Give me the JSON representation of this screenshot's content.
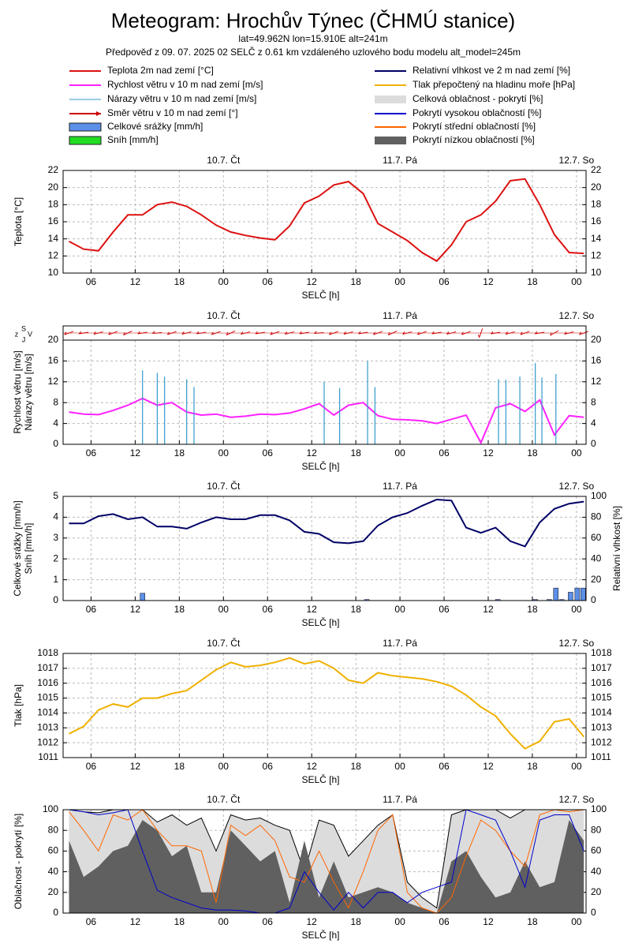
{
  "header": {
    "title": "Meteogram: Hrochův Týnec (ČHMÚ stanice)",
    "subtitle": "lat=49.962N lon=15.910E alt=241m",
    "forecast": "Předpověď z 09. 07. 2025 02 SELČ z 0.61 km vzdáleného uzlového bodu modelu alt_model=245m"
  },
  "chart_data": [
    {
      "type": "line",
      "ylabel": [
        "Teplota [°C]"
      ],
      "xlabel": "SELČ [h]",
      "x": [
        3,
        5,
        7,
        9,
        11,
        13,
        15,
        17,
        19,
        21,
        23,
        25,
        27,
        29,
        31,
        33,
        35,
        37,
        39,
        41,
        43,
        45,
        47,
        49,
        51,
        53,
        55,
        57,
        59,
        61,
        63,
        65,
        67,
        69,
        71,
        73
      ],
      "xlim": [
        2.2,
        73.3
      ],
      "xticks": [
        {
          "value": 6,
          "label": "06"
        },
        {
          "value": 12,
          "label": "12"
        },
        {
          "value": 18,
          "label": "18"
        },
        {
          "value": 24,
          "label": "00"
        },
        {
          "value": 30,
          "label": "06"
        },
        {
          "value": 36,
          "label": "12"
        },
        {
          "value": 42,
          "label": "18"
        },
        {
          "value": 48,
          "label": "00"
        },
        {
          "value": 54,
          "label": "06"
        },
        {
          "value": 60,
          "label": "12"
        },
        {
          "value": 66,
          "label": "18"
        },
        {
          "value": 72,
          "label": "00"
        }
      ],
      "days": [
        {
          "value": 24,
          "label": "10.7. Čt"
        },
        {
          "value": 48,
          "label": "11.7. Pá"
        },
        {
          "value": 72,
          "label": "12.7. So"
        }
      ],
      "ylim": [
        10,
        22
      ],
      "yticks": [
        10,
        12,
        14,
        16,
        18,
        20,
        22
      ],
      "yticks_mirror": true,
      "grid": true,
      "series": [
        {
          "name": "Teplota 2m nad zemí [°C]",
          "type": "line",
          "color": "#dd1111",
          "values": [
            13.7,
            12.8,
            12.6,
            14.8,
            16.8,
            16.8,
            18.0,
            18.3,
            17.8,
            16.8,
            15.6,
            14.8,
            14.4,
            14.1,
            13.9,
            15.5,
            18.2,
            19.0,
            20.3,
            20.7,
            19.3,
            15.8,
            14.8,
            13.8,
            12.4,
            11.4,
            13.3,
            16.0,
            16.8,
            18.4,
            20.8,
            21.0,
            18.0,
            14.5,
            12.4,
            12.3
          ]
        }
      ]
    },
    {
      "type": "line",
      "ylabel": [
        "Rychlost větru [m/s]",
        "Nárazy větru [m/s]"
      ],
      "xlabel": "SELČ [h]",
      "compass": [
        "z",
        "S",
        "J",
        "V"
      ],
      "x": [
        3,
        5,
        7,
        9,
        11,
        13,
        15,
        17,
        19,
        21,
        23,
        25,
        27,
        29,
        31,
        33,
        35,
        37,
        39,
        41,
        43,
        45,
        47,
        49,
        51,
        53,
        55,
        57,
        59,
        61,
        63,
        65,
        67,
        69,
        71,
        73
      ],
      "xlim": [
        2.2,
        73.3
      ],
      "xticks": [
        {
          "value": 6,
          "label": "06"
        },
        {
          "value": 12,
          "label": "12"
        },
        {
          "value": 18,
          "label": "18"
        },
        {
          "value": 24,
          "label": "00"
        },
        {
          "value": 30,
          "label": "06"
        },
        {
          "value": 36,
          "label": "12"
        },
        {
          "value": 42,
          "label": "18"
        },
        {
          "value": 48,
          "label": "00"
        },
        {
          "value": 54,
          "label": "06"
        },
        {
          "value": 60,
          "label": "12"
        },
        {
          "value": 66,
          "label": "18"
        },
        {
          "value": 72,
          "label": "00"
        }
      ],
      "days": [
        {
          "value": 24,
          "label": "10.7. Čt"
        },
        {
          "value": 48,
          "label": "11.7. Pá"
        },
        {
          "value": 72,
          "label": "12.7. So"
        }
      ],
      "ylim": [
        0,
        20
      ],
      "yticks": [
        0,
        4,
        8,
        12,
        16,
        20
      ],
      "yticks_mirror": true,
      "grid": true,
      "series": [
        {
          "name": "Rychlost větru v 10 m nad zemí [m/s]",
          "type": "line",
          "color": "#ff22ff",
          "values": [
            6.2,
            5.8,
            5.7,
            6.5,
            7.5,
            8.8,
            7.5,
            8.0,
            6.2,
            5.6,
            5.8,
            5.2,
            5.4,
            5.8,
            5.7,
            6.0,
            6.8,
            7.8,
            5.6,
            7.5,
            8.0,
            5.5,
            4.8,
            4.7,
            4.5,
            4.0,
            4.8,
            5.6,
            0.3,
            7.0,
            7.8,
            6.3,
            8.5,
            1.8,
            5.5,
            5.2
          ]
        },
        {
          "name": "Nárazy větru v 10 m nad zemí [m/s]",
          "type": "stem",
          "color": "#3399cc",
          "x": [
            13,
            15,
            16,
            19,
            20,
            37.7,
            39.8,
            43.6,
            44.6,
            61.4,
            62.4,
            64.3,
            66.4,
            67.3,
            69.2
          ],
          "values": [
            14.2,
            13.7,
            13,
            12.5,
            11,
            12,
            10.8,
            16,
            11,
            12.5,
            12.4,
            13,
            15.6,
            12.8,
            13.5
          ]
        },
        {
          "name": "Směr větru v 10 m nad zemí [°]",
          "type": "arrows",
          "color": "#cc0000",
          "values": [
            250,
            260,
            255,
            250,
            245,
            260,
            265,
            250,
            255,
            260,
            250,
            245,
            255,
            260,
            250,
            255,
            260,
            265,
            250,
            255,
            260,
            250,
            245,
            255,
            250,
            260,
            255,
            250,
            200,
            260,
            255,
            250,
            260,
            240,
            255,
            250
          ]
        }
      ]
    },
    {
      "type": "bar",
      "ylabel": [
        "Celkové srážky [mm/h]",
        "Sníh [mm/h]"
      ],
      "y2label": "Relativní vlhkost [%]",
      "xlabel": "SELČ [h]",
      "x": [
        3,
        5,
        7,
        9,
        11,
        13,
        15,
        17,
        19,
        21,
        23,
        25,
        27,
        29,
        31,
        33,
        35,
        37,
        39,
        41,
        43,
        45,
        47,
        49,
        51,
        53,
        55,
        57,
        59,
        61,
        63,
        65,
        67,
        69,
        71,
        73
      ],
      "xlim": [
        2.2,
        73.3
      ],
      "xticks": [
        {
          "value": 6,
          "label": "06"
        },
        {
          "value": 12,
          "label": "12"
        },
        {
          "value": 18,
          "label": "18"
        },
        {
          "value": 24,
          "label": "00"
        },
        {
          "value": 30,
          "label": "06"
        },
        {
          "value": 36,
          "label": "12"
        },
        {
          "value": 42,
          "label": "18"
        },
        {
          "value": 48,
          "label": "00"
        },
        {
          "value": 54,
          "label": "06"
        },
        {
          "value": 60,
          "label": "12"
        },
        {
          "value": 66,
          "label": "18"
        },
        {
          "value": 72,
          "label": "00"
        }
      ],
      "days": [
        {
          "value": 24,
          "label": "10.7. Čt"
        },
        {
          "value": 48,
          "label": "11.7. Pá"
        },
        {
          "value": 72,
          "label": "12.7. So"
        }
      ],
      "ylim": [
        0,
        5
      ],
      "yticks": [
        0,
        1,
        2,
        3,
        4,
        5
      ],
      "y2lim": [
        0,
        100
      ],
      "y2ticks": [
        0,
        20,
        40,
        60,
        80,
        100
      ],
      "grid": true,
      "series": [
        {
          "name": "Celkové srážky [mm/h]",
          "type": "bar",
          "color": "#5b8fe8",
          "x": [
            13,
            43.5,
            61.3,
            66.4,
            68.3,
            69.2,
            70,
            71.2,
            72.1,
            72.9
          ],
          "values": [
            0.35,
            0.05,
            0.05,
            0.05,
            0.05,
            0.6,
            0.05,
            0.4,
            0.6,
            0.6
          ]
        },
        {
          "name": "Sníh [mm/h]",
          "type": "bar",
          "color": "#22dd22",
          "x": [],
          "values": []
        },
        {
          "name": "Relativní vlhkost ve 2 m nad zemí [%]",
          "type": "line",
          "axis": "y2",
          "color": "#000066",
          "values": [
            74,
            74,
            81,
            83,
            78,
            80,
            71,
            71,
            69,
            75,
            80,
            78,
            78,
            82,
            82,
            77,
            66,
            64,
            56,
            55,
            57,
            72,
            80,
            84,
            91,
            97,
            96,
            70,
            65,
            70,
            57,
            52,
            75,
            88,
            93,
            95
          ]
        }
      ]
    },
    {
      "type": "line",
      "ylabel": [
        "Tlak [hPa]"
      ],
      "xlabel": "SELČ [h]",
      "x": [
        3,
        5,
        7,
        9,
        11,
        13,
        15,
        17,
        19,
        21,
        23,
        25,
        27,
        29,
        31,
        33,
        35,
        37,
        39,
        41,
        43,
        45,
        47,
        49,
        51,
        53,
        55,
        57,
        59,
        61,
        63,
        65,
        67,
        69,
        71,
        73
      ],
      "xlim": [
        2.2,
        73.3
      ],
      "xticks": [
        {
          "value": 6,
          "label": "06"
        },
        {
          "value": 12,
          "label": "12"
        },
        {
          "value": 18,
          "label": "18"
        },
        {
          "value": 24,
          "label": "00"
        },
        {
          "value": 30,
          "label": "06"
        },
        {
          "value": 36,
          "label": "12"
        },
        {
          "value": 42,
          "label": "18"
        },
        {
          "value": 48,
          "label": "00"
        },
        {
          "value": 54,
          "label": "06"
        },
        {
          "value": 60,
          "label": "12"
        },
        {
          "value": 66,
          "label": "18"
        },
        {
          "value": 72,
          "label": "00"
        }
      ],
      "days": [
        {
          "value": 24,
          "label": "10.7. Čt"
        },
        {
          "value": 48,
          "label": "11.7. Pá"
        },
        {
          "value": 72,
          "label": "12.7. So"
        }
      ],
      "ylim": [
        1011,
        1018
      ],
      "yticks": [
        1011,
        1012,
        1013,
        1014,
        1015,
        1016,
        1017,
        1018
      ],
      "yticks_mirror": true,
      "grid": true,
      "series": [
        {
          "name": "Tlak přepočtený na hladinu moře [hPa]",
          "type": "line",
          "color": "#f0b000",
          "values": [
            1012.6,
            1013.1,
            1014.2,
            1014.6,
            1014.4,
            1015.0,
            1015.0,
            1015.3,
            1015.5,
            1016.2,
            1016.9,
            1017.4,
            1017.1,
            1017.2,
            1017.4,
            1017.7,
            1017.3,
            1017.5,
            1017.0,
            1016.2,
            1016.0,
            1016.7,
            1016.5,
            1016.4,
            1016.3,
            1016.1,
            1015.8,
            1015.2,
            1014.4,
            1013.8,
            1012.6,
            1011.6,
            1012.1,
            1013.4,
            1013.6,
            1012.4
          ]
        }
      ]
    },
    {
      "type": "area",
      "ylabel": [
        "Oblačnost - pokrytí [%]"
      ],
      "xlabel": "SELČ [h]",
      "x": [
        3,
        5,
        7,
        9,
        11,
        13,
        15,
        17,
        19,
        21,
        23,
        25,
        27,
        29,
        31,
        33,
        35,
        37,
        39,
        41,
        43,
        45,
        47,
        49,
        51,
        53,
        55,
        57,
        59,
        61,
        63,
        65,
        67,
        69,
        71,
        73
      ],
      "xlim": [
        2.2,
        73.3
      ],
      "xticks": [
        {
          "value": 6,
          "label": "06"
        },
        {
          "value": 12,
          "label": "12"
        },
        {
          "value": 18,
          "label": "18"
        },
        {
          "value": 24,
          "label": "00"
        },
        {
          "value": 30,
          "label": "06"
        },
        {
          "value": 36,
          "label": "12"
        },
        {
          "value": 42,
          "label": "18"
        },
        {
          "value": 48,
          "label": "00"
        },
        {
          "value": 54,
          "label": "06"
        },
        {
          "value": 60,
          "label": "12"
        },
        {
          "value": 66,
          "label": "18"
        },
        {
          "value": 72,
          "label": "00"
        }
      ],
      "days": [
        {
          "value": 24,
          "label": "10.7. Čt"
        },
        {
          "value": 48,
          "label": "11.7. Pá"
        },
        {
          "value": 72,
          "label": "12.7. So"
        }
      ],
      "ylim": [
        0,
        100
      ],
      "yticks": [
        0,
        20,
        40,
        60,
        80,
        100
      ],
      "yticks_mirror": true,
      "grid": true,
      "series": [
        {
          "name": "Celková oblačnost - pokrytí [%]",
          "type": "area",
          "color": "#dcdcdc",
          "values": [
            100,
            98,
            97,
            100,
            100,
            100,
            88,
            95,
            85,
            92,
            60,
            95,
            90,
            92,
            85,
            80,
            40,
            90,
            85,
            55,
            70,
            85,
            95,
            30,
            15,
            5,
            95,
            100,
            100,
            100,
            92,
            100,
            100,
            100,
            100,
            100
          ]
        },
        {
          "name": "Pokrytí nízkou oblačností [%]",
          "type": "area",
          "color": "#606060",
          "values": [
            70,
            35,
            45,
            60,
            65,
            90,
            80,
            55,
            65,
            20,
            20,
            80,
            65,
            50,
            60,
            10,
            70,
            15,
            50,
            15,
            20,
            25,
            20,
            10,
            5,
            0,
            50,
            60,
            35,
            15,
            20,
            50,
            25,
            30,
            90,
            70
          ]
        },
        {
          "name": "Pokrytí střední oblačností [%]",
          "type": "line",
          "color": "#ff6600",
          "values": [
            98,
            80,
            60,
            95,
            90,
            100,
            80,
            65,
            65,
            60,
            10,
            85,
            75,
            85,
            70,
            35,
            30,
            60,
            30,
            5,
            40,
            80,
            95,
            20,
            5,
            0,
            15,
            55,
            90,
            80,
            60,
            45,
            95,
            100,
            98,
            100
          ]
        },
        {
          "name": "Pokrytí vysokou oblačností [%]",
          "type": "line",
          "color": "#0000cc",
          "values": [
            100,
            98,
            95,
            97,
            100,
            60,
            22,
            15,
            10,
            5,
            3,
            3,
            2,
            0,
            0,
            5,
            40,
            20,
            3,
            20,
            5,
            20,
            20,
            10,
            20,
            25,
            30,
            100,
            95,
            90,
            60,
            25,
            90,
            95,
            95,
            60
          ]
        }
      ]
    }
  ]
}
